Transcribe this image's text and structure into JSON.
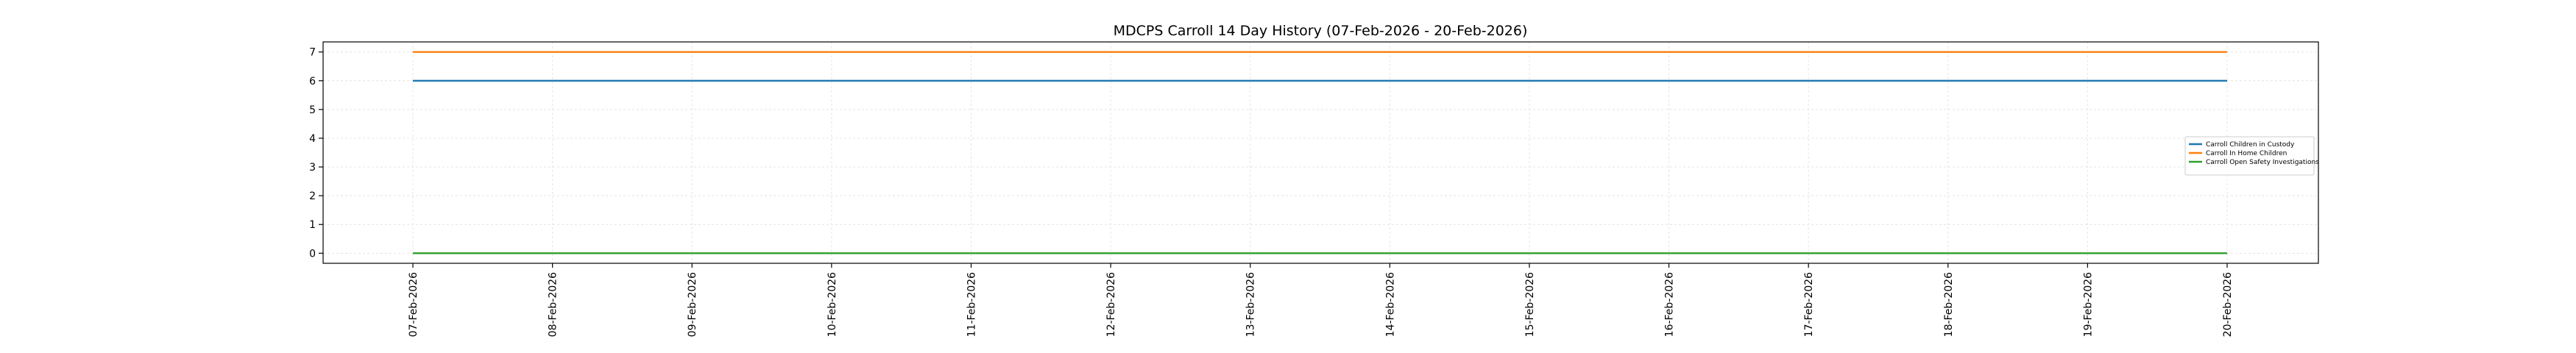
{
  "chart_data": {
    "type": "line",
    "title": "MDCPS Carroll 14 Day History (07-Feb-2026 - 20-Feb-2026)",
    "xlabel": "",
    "ylabel": "",
    "x": [
      "07-Feb-2026",
      "08-Feb-2026",
      "09-Feb-2026",
      "10-Feb-2026",
      "11-Feb-2026",
      "12-Feb-2026",
      "13-Feb-2026",
      "14-Feb-2026",
      "15-Feb-2026",
      "16-Feb-2026",
      "17-Feb-2026",
      "18-Feb-2026",
      "19-Feb-2026",
      "20-Feb-2026"
    ],
    "ylim": [
      -0.35,
      7.35
    ],
    "yticks": [
      0,
      1,
      2,
      3,
      4,
      5,
      6,
      7
    ],
    "grid": true,
    "legend_position": "center-right",
    "series": [
      {
        "name": "Carroll Children in Custody",
        "color": "#1f77b4",
        "values": [
          6,
          6,
          6,
          6,
          6,
          6,
          6,
          6,
          6,
          6,
          6,
          6,
          6,
          6
        ]
      },
      {
        "name": "Carroll In Home Children",
        "color": "#ff7f0e",
        "values": [
          7,
          7,
          7,
          7,
          7,
          7,
          7,
          7,
          7,
          7,
          7,
          7,
          7,
          7
        ]
      },
      {
        "name": "Carroll Open Safety Investigations",
        "color": "#2ca02c",
        "values": [
          0,
          0,
          0,
          0,
          0,
          0,
          0,
          0,
          0,
          0,
          0,
          0,
          0,
          0
        ]
      }
    ]
  }
}
